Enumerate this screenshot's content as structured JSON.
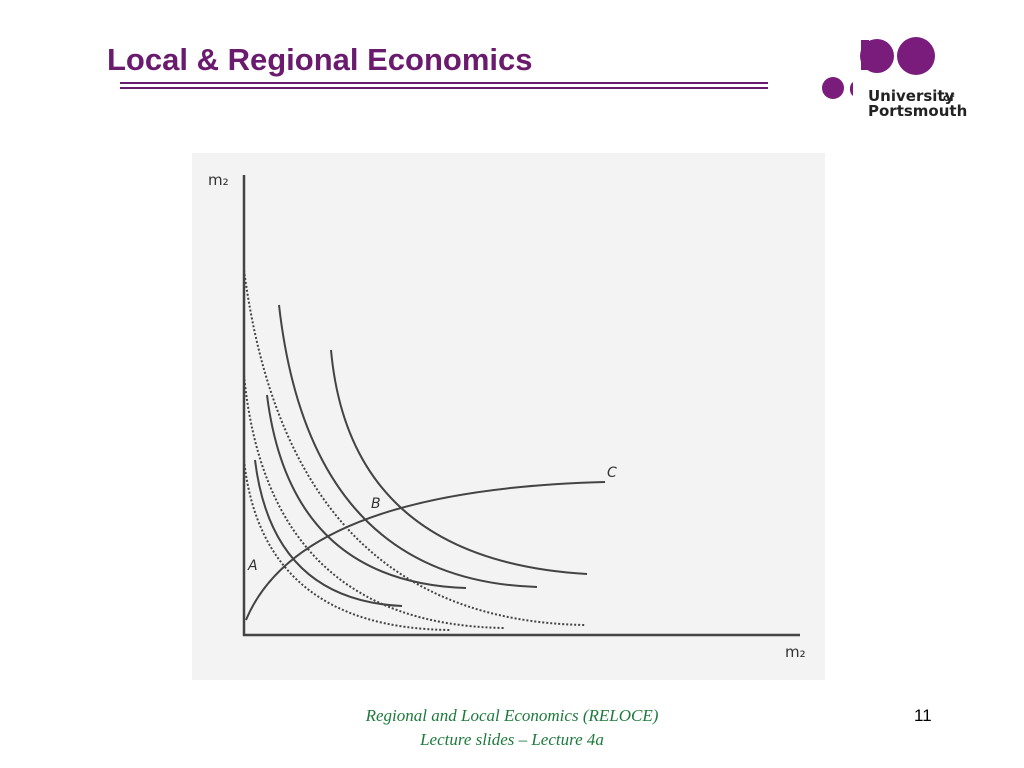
{
  "header": {
    "title": "Local & Regional Economics"
  },
  "logo": {
    "name": "University",
    "of": "of",
    "place": "Portsmouth"
  },
  "diagram": {
    "y_axis_label": "m₂",
    "x_axis_label": "m₂",
    "point_labels": [
      "A",
      "B",
      "C"
    ]
  },
  "footer": {
    "lines": [
      "Regional and Local Economics (RELOCE)",
      "Lecture slides – Lecture 4a"
    ],
    "page_number": 11
  }
}
